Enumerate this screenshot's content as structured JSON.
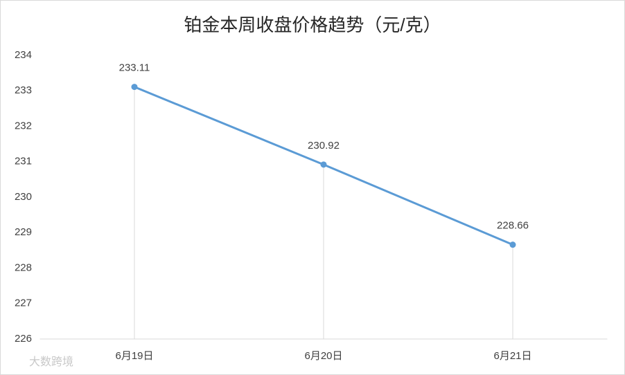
{
  "chart_data": {
    "type": "line",
    "title": "铂金本周收盘价格趋势（元/克）",
    "categories": [
      "6月19日",
      "6月20日",
      "6月21日"
    ],
    "series": [
      {
        "name": "铂金",
        "color": "#5b9bd5",
        "values": [
          233.11,
          230.92,
          228.66
        ]
      }
    ],
    "ylim": [
      226,
      234
    ],
    "yticks": [
      226,
      227,
      228,
      229,
      230,
      231,
      232,
      233,
      234
    ],
    "drop_lines": true,
    "data_labels": true,
    "watermark": "大数跨境"
  }
}
